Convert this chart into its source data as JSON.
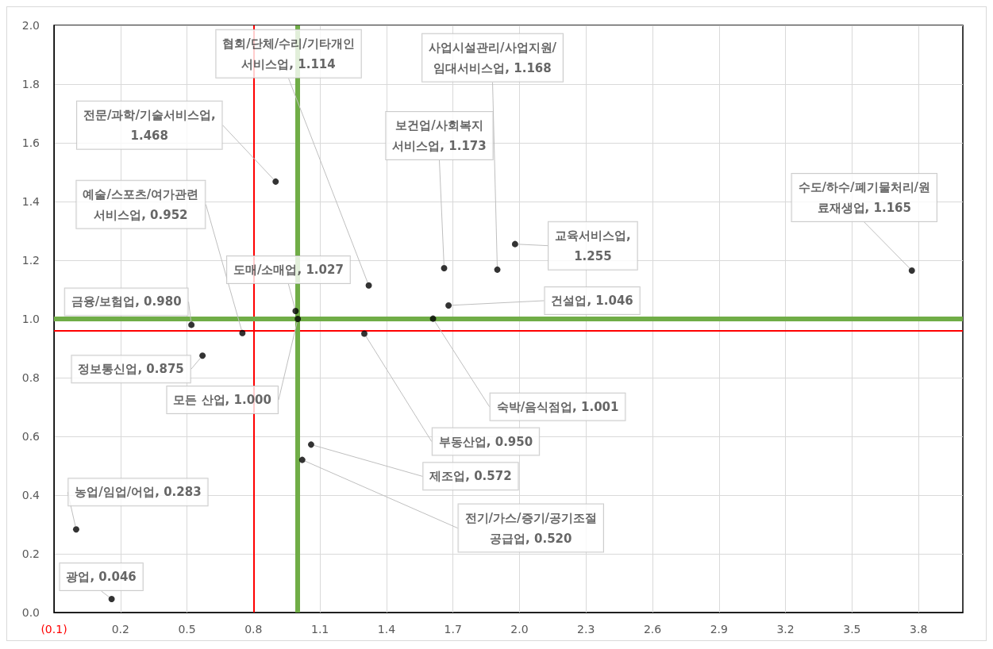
{
  "chart_data": {
    "type": "scatter",
    "marker": "circle",
    "grid": true,
    "xlim": [
      -0.1,
      4.0
    ],
    "ylim": [
      0,
      2.0
    ],
    "xticks": [
      {
        "value": -0.1,
        "label": "(0.1)"
      },
      0.2,
      0.5,
      0.8,
      1.1,
      1.4,
      1.7,
      {
        "value": 2.0,
        "label": "2.0"
      },
      2.3,
      2.6,
      2.9,
      3.2,
      3.5,
      3.8
    ],
    "yticks": [
      {
        "value": 0,
        "label": "0.0"
      },
      0.2,
      0.4,
      0.6,
      0.8,
      {
        "value": 1.0,
        "label": "1.0"
      },
      1.2,
      1.4,
      1.6,
      1.8,
      {
        "value": 2.0,
        "label": "2.0"
      }
    ],
    "series": [
      {
        "color": "#000000",
        "x": [
          0.16,
          0.0,
          0.52,
          0.75,
          0.57,
          0.99,
          1.0,
          1.32,
          1.3,
          1.61,
          1.68,
          1.66,
          1.9,
          1.06,
          1.02,
          1.98,
          3.77,
          0.9
        ],
        "values": [
          0.046,
          0.283,
          0.98,
          0.952,
          0.875,
          1.027,
          1.0,
          1.114,
          0.95,
          1.001,
          1.046,
          1.173,
          1.168,
          0.572,
          0.52,
          1.255,
          1.165,
          1.468
        ],
        "value_labels": [
          "광업, 0.046",
          "농업/임업/어업, 0.283",
          "금융/보험업, 0.980",
          "예술/스포츠/여가관련\n서비스업, 0.952",
          "정보통신업, 0.875",
          "도매/소매업, 1.027",
          "모든 산업, 1.000",
          "협회/단체/수리/기타개인\n서비스업, 1.114",
          "부동산업, 0.950",
          "숙박/음식점업, 1.001",
          "건설업, 1.046",
          "보건업/사회복지\n서비스업, 1.173",
          "사업시설관리/사업지원/\n임대서비스업, 1.168",
          "제조업, 0.572",
          "전기/가스/증기/공기조절\n공급업, 0.520",
          "교육서비스업,\n1.255",
          "수도/하수/폐기물처리/원\n료재생업, 1.165",
          "전문/과학/기술서비스업,\n1.468"
        ]
      }
    ],
    "ref_lines": [
      {
        "axis": "x",
        "value": 0.8,
        "color": "#ff0000"
      },
      {
        "axis": "y",
        "value": 0.96,
        "color": "#ff0000"
      },
      {
        "axis": "x",
        "value": 1.0,
        "color": "#70ad47"
      },
      {
        "axis": "y",
        "value": 1.0,
        "color": "#70ad47"
      }
    ]
  }
}
